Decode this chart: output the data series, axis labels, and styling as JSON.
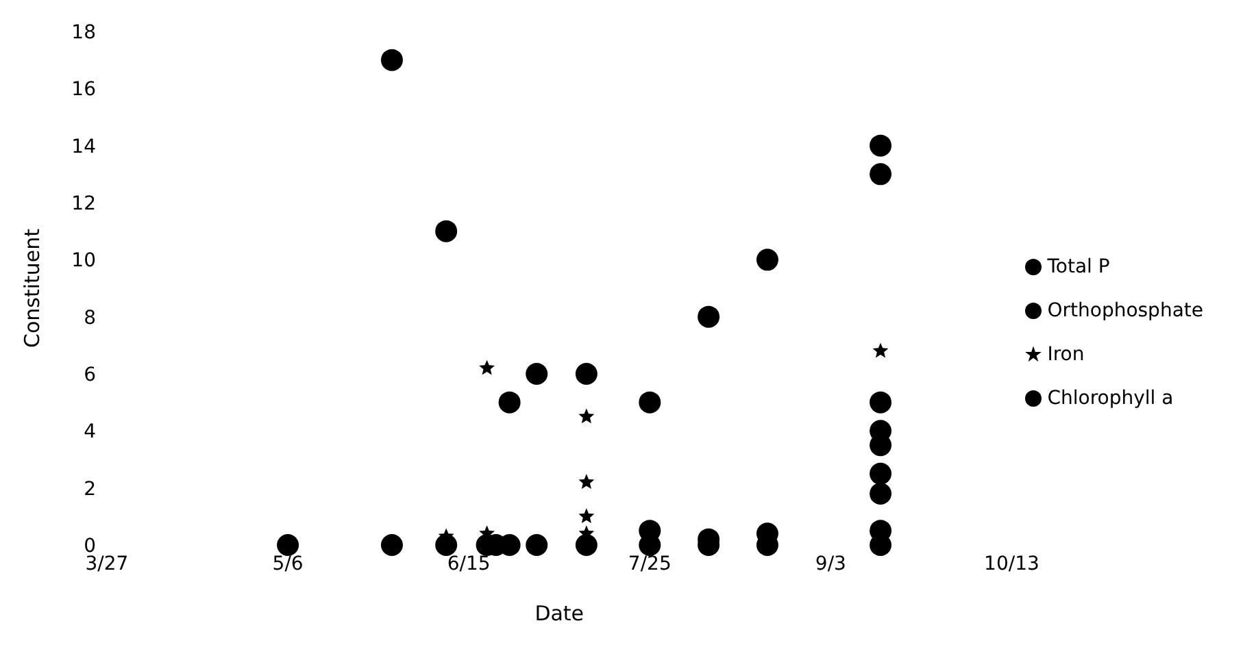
{
  "chart_data": {
    "type": "scatter",
    "xlabel": "Date",
    "ylabel": "Constituent",
    "xlim": [
      "--03-27",
      "--10-13"
    ],
    "xticks": [
      {
        "value": "--03-27",
        "label": "3/27"
      },
      {
        "value": "--05-06",
        "label": "5/6"
      },
      {
        "value": "--06-15",
        "label": "6/15"
      },
      {
        "value": "--07-25",
        "label": "7/25"
      },
      {
        "value": "--09-03",
        "label": "9/3"
      },
      {
        "value": "--10-13",
        "label": "10/13"
      }
    ],
    "ylim": [
      0,
      18
    ],
    "yticks": [
      0,
      2,
      4,
      6,
      8,
      10,
      12,
      14,
      16,
      18
    ],
    "grid": false,
    "legend": "right",
    "marker": "circle",
    "series": [
      {
        "name": "Total P",
        "color": "#000000",
        "x": [
          "--05-06",
          "--05-29",
          "--06-10",
          "--06-19",
          "--06-24",
          "--06-30",
          "--07-11",
          "--07-25",
          "--08-07",
          "--08-20",
          "--09-14"
        ],
        "values": [
          0,
          0,
          0,
          0,
          0,
          0,
          0,
          0,
          0,
          0,
          0
        ]
      },
      {
        "name": "Orthophosphate",
        "color": "#000000",
        "x": [
          "--06-21",
          "--07-25",
          "--08-07",
          "--08-20",
          "--09-14"
        ],
        "values": [
          0,
          0.5,
          0.2,
          0.4,
          0.5
        ]
      },
      {
        "name": "Iron",
        "color": "#000000",
        "marker": "star",
        "x": [
          "--06-10",
          "--06-19",
          "--06-19",
          "--07-11",
          "--07-11",
          "--07-11",
          "--07-11",
          "--09-14"
        ],
        "values": [
          0.3,
          6.2,
          0.4,
          4.5,
          2.2,
          1.0,
          0.4,
          6.8
        ]
      },
      {
        "name": "Chlorophyll a",
        "color": "#000000",
        "x": [
          "--05-29",
          "--06-10",
          "--06-24",
          "--06-30",
          "--07-11",
          "--07-25",
          "--08-07",
          "--08-20",
          "--09-14",
          "--09-14",
          "--09-14",
          "--09-14",
          "--09-14",
          "--09-14",
          "--09-14"
        ],
        "values": [
          17,
          11,
          5,
          6,
          6,
          5,
          8,
          10,
          14,
          13,
          5,
          4,
          3.5,
          2.5,
          1.8
        ]
      }
    ]
  }
}
